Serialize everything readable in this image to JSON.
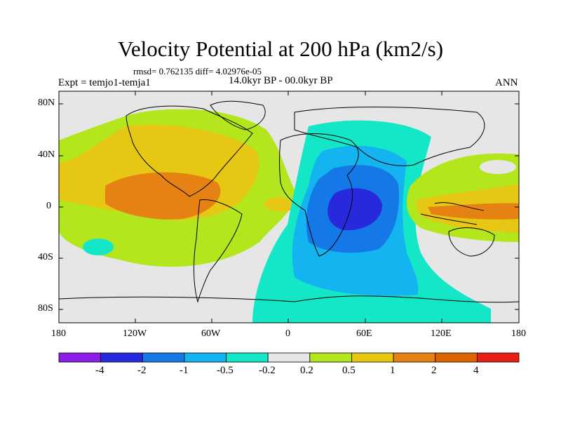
{
  "header": {
    "title": "Velocity Potential at 200 hPa (km2/s)",
    "stats": "rmsd= 0.762135 diff= 4.02976e-05",
    "period": "14.0kyr BP - 00.0kyr BP",
    "experiment": "Expt = temjo1-temja1",
    "season": "ANN"
  },
  "map": {
    "projection": "cylindrical equidistant",
    "lat_labels": [
      "80N",
      "40N",
      "0",
      "40S",
      "80S"
    ],
    "lon_labels": [
      "180",
      "120W",
      "60W",
      "0",
      "60E",
      "120E",
      "180"
    ]
  },
  "colorbar": {
    "labels": [
      "-4",
      "-2",
      "-1",
      "-0.5",
      "-0.2",
      "0.2",
      "0.5",
      "1",
      "2",
      "4"
    ],
    "colors": [
      "#8a1ee6",
      "#2828dc",
      "#1478e6",
      "#14b4f0",
      "#14e6c8",
      "#e6e6e6",
      "#b4e61e",
      "#e6c814",
      "#e68214",
      "#dc6400",
      "#e61e14"
    ]
  }
}
